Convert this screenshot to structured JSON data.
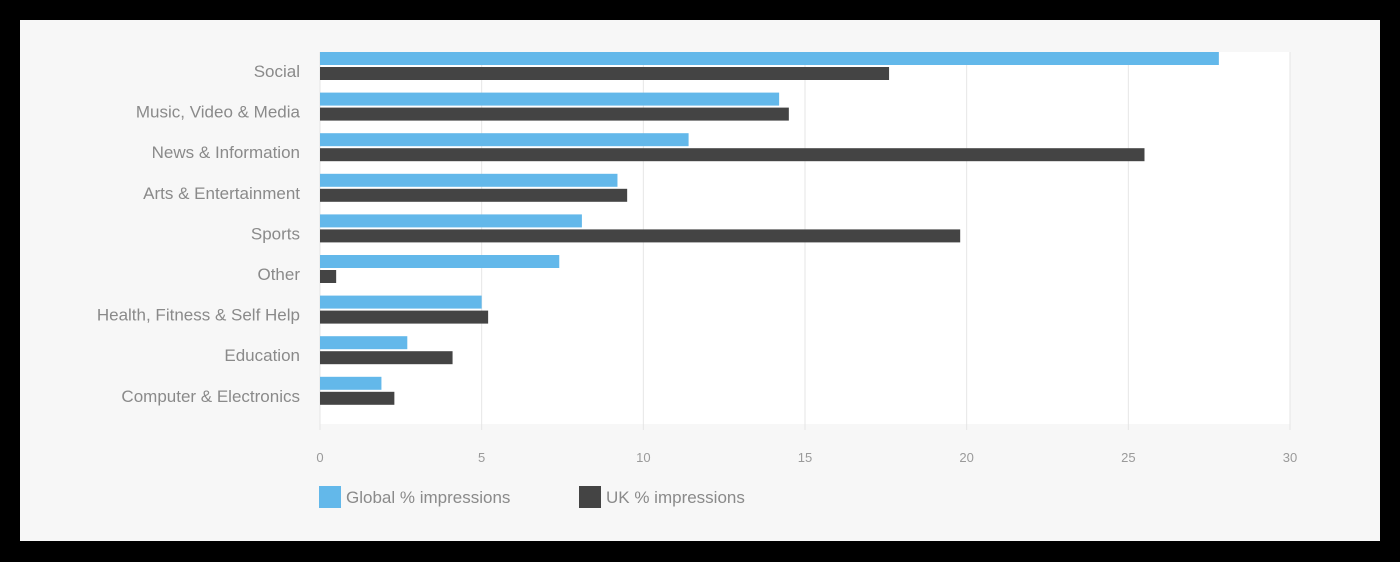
{
  "chart_data": {
    "type": "bar",
    "orientation": "horizontal",
    "title": "",
    "xlabel": "",
    "ylabel": "",
    "categories": [
      "Social",
      "Music, Video & Media",
      "News & Information",
      "Arts & Entertainment",
      "Sports",
      "Other",
      "Health, Fitness & Self Help",
      "Education",
      "Computer & Electronics"
    ],
    "series": [
      {
        "name": "Global % impressions",
        "color": "#63b8ea",
        "values": [
          27.8,
          14.2,
          11.4,
          9.2,
          8.1,
          7.4,
          5.0,
          2.7,
          1.9
        ]
      },
      {
        "name": "UK % impressions",
        "color": "#444444",
        "values": [
          17.6,
          14.5,
          25.5,
          9.5,
          19.8,
          0.5,
          5.2,
          4.1,
          2.3
        ]
      }
    ],
    "xlim": [
      0,
      30
    ],
    "xticks": [
      "0",
      "5",
      "10",
      "15",
      "20",
      "25",
      "30"
    ],
    "grid": true,
    "legend": "bottom-left"
  }
}
